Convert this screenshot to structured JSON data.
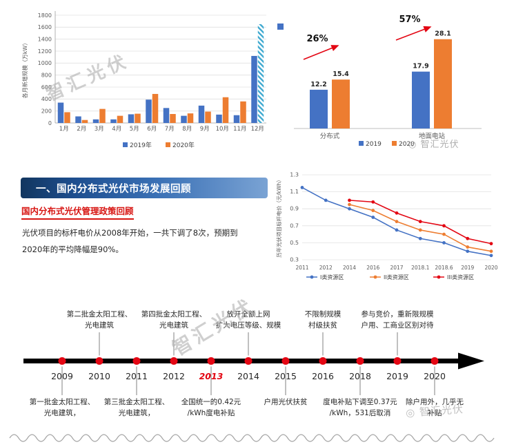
{
  "watermarks": {
    "brand": "智汇光伏",
    "brand_circled": "◎ 智汇光伏"
  },
  "section": {
    "title": "一、国内分布式光伏市场发展回顾",
    "subtitle": "国内分布式光伏管理政策回顾",
    "body_line1": "光伏项目的标杆电价从2008年开始，一共下调了8次，预期到",
    "body_line2": "2020年的平均降幅是90%。"
  },
  "chart_data": [
    {
      "type": "bar",
      "title": "",
      "ylabel": "各月新增规模（万kW）",
      "ylim": [
        0,
        1800
      ],
      "yticks": [
        0,
        200,
        400,
        600,
        800,
        1000,
        1200,
        1400,
        1600,
        1800
      ],
      "categories": [
        "1月",
        "2月",
        "3月",
        "4月",
        "5月",
        "6月",
        "7月",
        "8月",
        "9月",
        "10月",
        "11月",
        "12月"
      ],
      "series": [
        {
          "name": "2019年",
          "color": "#4472c4",
          "values": [
            340,
            110,
            60,
            60,
            145,
            390,
            250,
            120,
            290,
            140,
            130,
            1120
          ]
        },
        {
          "name": "2020年",
          "color": "#ed7d31",
          "values": [
            180,
            50,
            235,
            120,
            155,
            485,
            150,
            160,
            190,
            430,
            360,
            1650
          ],
          "hatched_index": 11
        }
      ],
      "estimate_color": "#3fa9d0",
      "grid": true,
      "legend_position": "bottom"
    },
    {
      "type": "bar",
      "title": "",
      "categories": [
        "分布式",
        "地面电站"
      ],
      "series": [
        {
          "name": "2019",
          "color": "#4472c4",
          "values": [
            12.2,
            17.9
          ]
        },
        {
          "name": "2020",
          "color": "#ed7d31",
          "values": [
            15.4,
            28.1
          ]
        }
      ],
      "annotations": [
        {
          "text": "26%",
          "target": "分布式"
        },
        {
          "text": "57%",
          "target": "地面电站"
        }
      ],
      "annotation_color": "#e30613",
      "data_labels": true,
      "grid": false,
      "legend_position": "bottom"
    },
    {
      "type": "line",
      "title": "",
      "ylabel": "历年光伏项目标杆电价（元/kWh）",
      "ylim": [
        0.3,
        1.3
      ],
      "yticks": [
        0.3,
        0.5,
        0.7,
        0.9,
        1.1,
        1.3
      ],
      "categories": [
        "2011",
        "2012",
        "2014",
        "2016",
        "2017",
        "2018.1",
        "2018.6",
        "2019",
        "2020"
      ],
      "series": [
        {
          "name": "I类资源区",
          "color": "#4472c4",
          "values": [
            1.15,
            1.0,
            0.9,
            0.8,
            0.65,
            0.55,
            0.5,
            0.4,
            0.35
          ]
        },
        {
          "name": "II类资源区",
          "color": "#ed7d31",
          "values": [
            null,
            null,
            0.95,
            0.88,
            0.75,
            0.65,
            0.6,
            0.45,
            0.4
          ]
        },
        {
          "name": "III类资源区",
          "color": "#e30613",
          "values": [
            null,
            null,
            1.0,
            0.98,
            0.85,
            0.75,
            0.7,
            0.55,
            0.49
          ]
        }
      ],
      "grid": true,
      "legend_position": "bottom"
    }
  ],
  "timeline": {
    "dot_color": "#e30613",
    "highlight_color": "#e30613",
    "years": [
      {
        "label": "2009"
      },
      {
        "label": "2010"
      },
      {
        "label": "2011"
      },
      {
        "label": "2012"
      },
      {
        "label": "2013",
        "highlight": true
      },
      {
        "label": "2014"
      },
      {
        "label": "2015"
      },
      {
        "label": "2016"
      },
      {
        "label": "2018"
      },
      {
        "label": "2019"
      },
      {
        "label": "2020"
      }
    ],
    "events": [
      {
        "year": "2009",
        "position": "below",
        "lines": [
          "第一批金太阳工程、",
          "光电建筑，"
        ]
      },
      {
        "year": "2010",
        "position": "above",
        "lines": [
          "第二批金太阳工程、",
          "光电建筑"
        ]
      },
      {
        "year": "2011",
        "position": "below",
        "lines": [
          "第三批金太阳工程、",
          "光电建筑，"
        ]
      },
      {
        "year": "2012",
        "position": "above",
        "lines": [
          "第四批金太阳工程、",
          "光电建筑"
        ]
      },
      {
        "year": "2013",
        "position": "below",
        "lines": [
          "全国统一的0.42元",
          "/kWh度电补贴"
        ]
      },
      {
        "year": "2014",
        "position": "above",
        "lines": [
          "放开全额上网",
          "扩大电压等级、规模"
        ]
      },
      {
        "year": "2015",
        "position": "below",
        "lines": [
          "户用光伏扶贫"
        ]
      },
      {
        "year": "2016",
        "position": "above",
        "lines": [
          "不限制规模",
          "村级扶贫"
        ]
      },
      {
        "year": "2018",
        "position": "below",
        "lines": [
          "度电补贴下调至0.37元",
          "/kWh，531后取消"
        ]
      },
      {
        "year": "2019",
        "position": "above",
        "lines": [
          "参与竞价，重新限规模",
          "户用、工商业区别对待"
        ]
      },
      {
        "year": "2020",
        "position": "below",
        "lines": [
          "除户用外，几乎无",
          "补贴"
        ]
      }
    ]
  }
}
